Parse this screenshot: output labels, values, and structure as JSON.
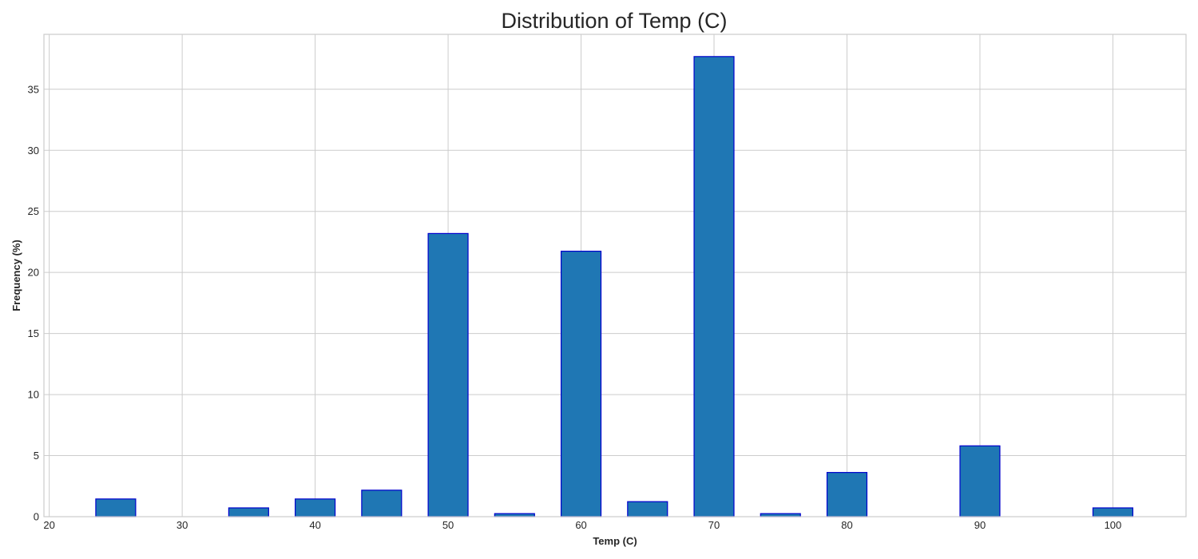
{
  "chart_data": {
    "type": "bar",
    "title": "Distribution of Temp (C)",
    "xlabel": "Temp (C)",
    "ylabel": "Frequency (%)",
    "x": [
      25,
      35,
      40,
      45,
      50,
      55,
      60,
      65,
      70,
      75,
      80,
      90,
      100
    ],
    "values": [
      1.45,
      0.72,
      1.45,
      2.17,
      23.19,
      0.25,
      21.74,
      1.23,
      37.68,
      0.25,
      3.62,
      5.8,
      0.72
    ],
    "bin_width": 3,
    "xlim": [
      19.6,
      105.5
    ],
    "ylim": [
      0,
      39.5
    ],
    "xticks": [
      20,
      30,
      40,
      50,
      60,
      70,
      80,
      90,
      100
    ],
    "yticks": [
      0,
      5,
      10,
      15,
      20,
      25,
      30,
      35
    ],
    "grid": true,
    "colors": {
      "bar_fill": "#1f77b4",
      "bar_edge": "#0000cd",
      "grid": "#cccccc"
    }
  }
}
